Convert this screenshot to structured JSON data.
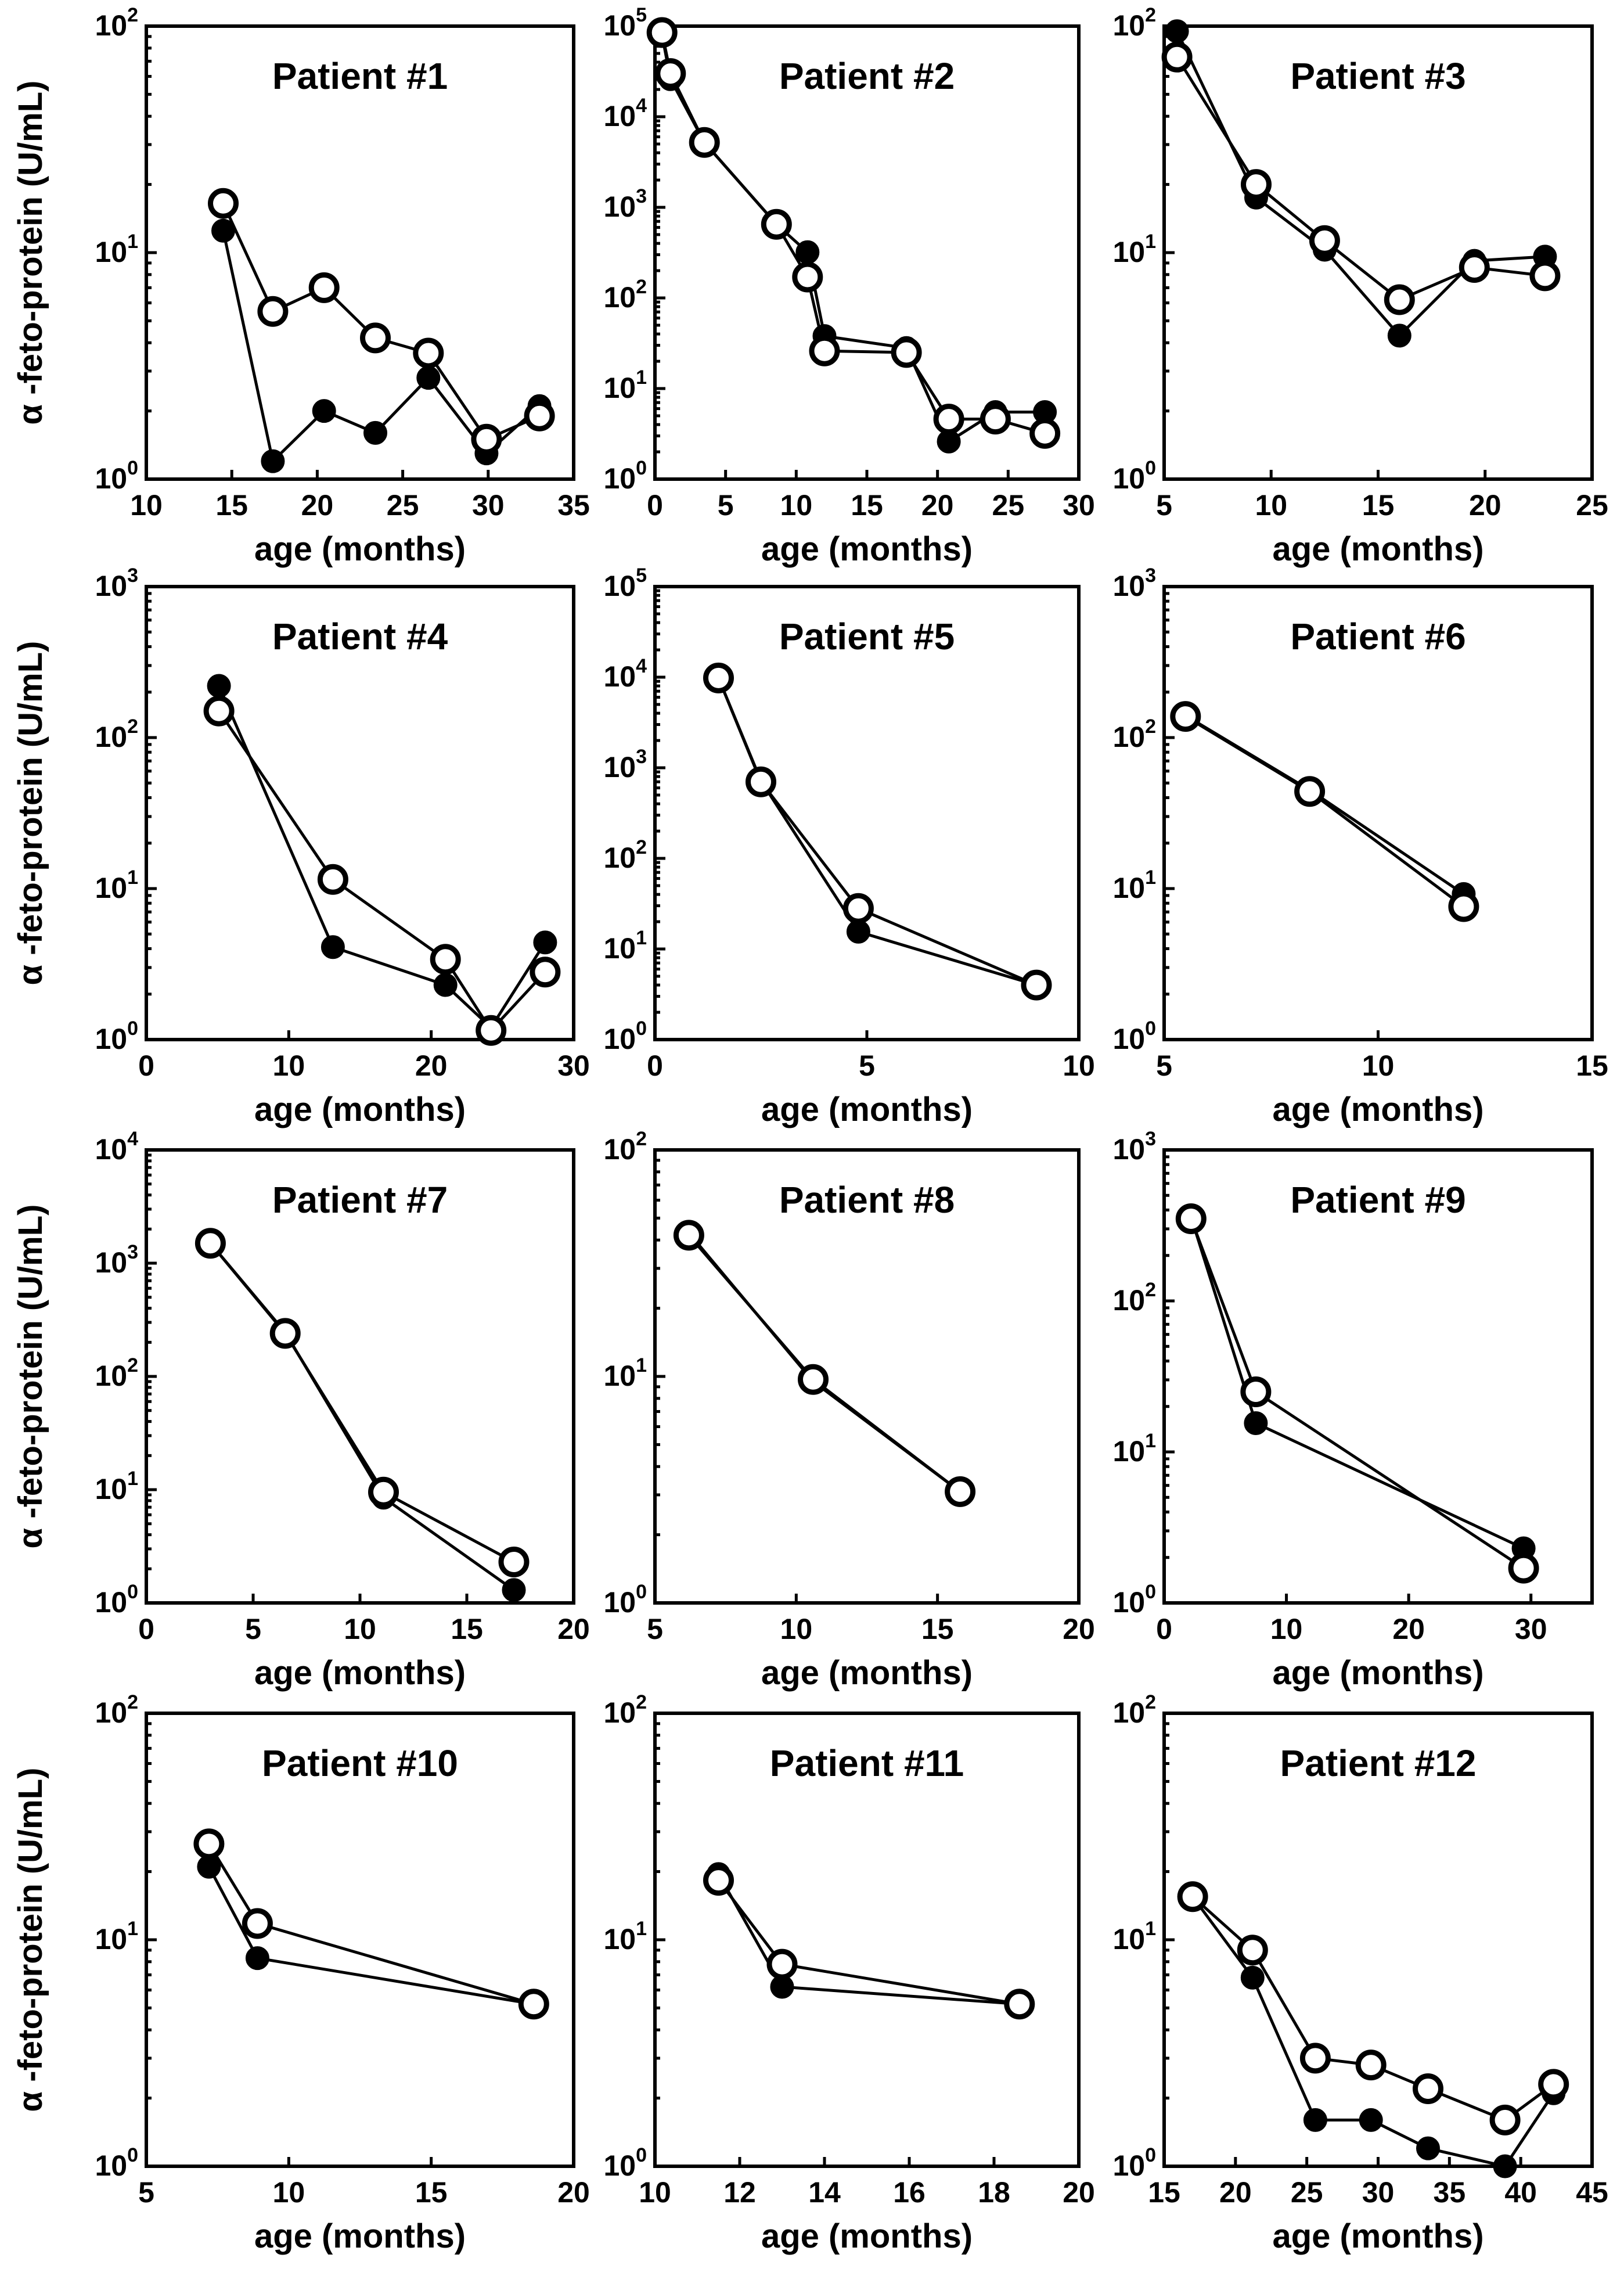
{
  "chart_data": [
    {
      "type": "scatter",
      "title": "Patient #1",
      "xlabel": "age (months)",
      "ylabel": "α -feto-protein (U/mL)",
      "xlim": [
        10,
        35
      ],
      "xticks": [
        10,
        15,
        20,
        25,
        30,
        35
      ],
      "ylog": true,
      "yexp": [
        0,
        2
      ],
      "ytick_labels": [
        {
          "base": "10",
          "exp": "0"
        },
        {
          "base": "10",
          "exp": "1"
        },
        {
          "base": "10",
          "exp": "2"
        }
      ],
      "series": [
        {
          "marker": "filled",
          "x": [
            14.5,
            17.4,
            20.4,
            23.4,
            26.5,
            29.9,
            33.0
          ],
          "y": [
            12.5,
            1.2,
            2.0,
            1.6,
            2.8,
            1.3,
            2.1
          ]
        },
        {
          "marker": "open",
          "x": [
            14.5,
            17.4,
            20.4,
            23.4,
            26.5,
            29.9,
            33.0
          ],
          "y": [
            16.5,
            5.5,
            7.0,
            4.2,
            3.6,
            1.5,
            1.9
          ]
        }
      ]
    },
    {
      "type": "scatter",
      "title": "Patient #2",
      "xlabel": "age (months)",
      "ylabel": "",
      "xlim": [
        0,
        30
      ],
      "xticks": [
        0,
        5,
        10,
        15,
        20,
        25,
        30
      ],
      "ylog": true,
      "yexp": [
        0,
        5
      ],
      "ytick_labels": [
        {
          "base": "10",
          "exp": "0"
        },
        {
          "base": "10",
          "exp": "1"
        },
        {
          "base": "10",
          "exp": "2"
        },
        {
          "base": "10",
          "exp": "3"
        },
        {
          "base": "10",
          "exp": "4"
        },
        {
          "base": "10",
          "exp": "5"
        }
      ],
      "series": [
        {
          "marker": "filled",
          "x": [
            0.5,
            1.1,
            3.5,
            8.6,
            10.8,
            12.0,
            17.8,
            20.8,
            24.1,
            27.6
          ],
          "y": [
            80000,
            26000,
            5200,
            650,
            320,
            38,
            28,
            2.6,
            5.5,
            5.5
          ]
        },
        {
          "marker": "open",
          "x": [
            0.5,
            1.1,
            3.5,
            8.6,
            10.8,
            12.0,
            17.8,
            20.8,
            24.1,
            27.6
          ],
          "y": [
            85000,
            30000,
            5200,
            650,
            170,
            26,
            25,
            4.6,
            4.6,
            3.2
          ]
        }
      ]
    },
    {
      "type": "scatter",
      "title": "Patient #3",
      "xlabel": "age (months)",
      "ylabel": "",
      "xlim": [
        5,
        25
      ],
      "xticks": [
        5,
        10,
        15,
        20,
        25
      ],
      "ylog": true,
      "yexp": [
        0,
        2
      ],
      "ytick_labels": [
        {
          "base": "10",
          "exp": "0"
        },
        {
          "base": "10",
          "exp": "1"
        },
        {
          "base": "10",
          "exp": "2"
        }
      ],
      "series": [
        {
          "marker": "filled",
          "x": [
            5.6,
            9.3,
            12.5,
            16.0,
            19.5,
            22.8
          ],
          "y": [
            95,
            17.5,
            10.3,
            4.3,
            9.2,
            9.6
          ]
        },
        {
          "marker": "open",
          "x": [
            5.6,
            9.3,
            12.5,
            16.0,
            19.5,
            22.8
          ],
          "y": [
            73,
            20,
            11.3,
            6.2,
            8.6,
            7.9
          ]
        }
      ]
    },
    {
      "type": "scatter",
      "title": "Patient #4",
      "xlabel": "age (months)",
      "ylabel": "α -feto-protein (U/mL)",
      "xlim": [
        0,
        30
      ],
      "xticks": [
        0,
        10,
        20,
        30
      ],
      "ylog": true,
      "yexp": [
        0,
        3
      ],
      "ytick_labels": [
        {
          "base": "10",
          "exp": "0"
        },
        {
          "base": "10",
          "exp": "1"
        },
        {
          "base": "10",
          "exp": "2"
        },
        {
          "base": "10",
          "exp": "3"
        }
      ],
      "series": [
        {
          "marker": "filled",
          "x": [
            5.1,
            13.1,
            21.0,
            24.2,
            28.0
          ],
          "y": [
            220,
            4.1,
            2.3,
            1.2,
            4.4
          ]
        },
        {
          "marker": "open",
          "x": [
            5.1,
            13.1,
            21.0,
            24.2,
            28.0
          ],
          "y": [
            150,
            11.5,
            3.4,
            1.15,
            2.8
          ]
        }
      ]
    },
    {
      "type": "scatter",
      "title": "Patient #5",
      "xlabel": "age (months)",
      "ylabel": "",
      "xlim": [
        0,
        10
      ],
      "xticks": [
        0,
        5,
        10
      ],
      "ylog": true,
      "yexp": [
        0,
        5
      ],
      "ytick_labels": [
        {
          "base": "10",
          "exp": "0"
        },
        {
          "base": "10",
          "exp": "1"
        },
        {
          "base": "10",
          "exp": "2"
        },
        {
          "base": "10",
          "exp": "3"
        },
        {
          "base": "10",
          "exp": "4"
        },
        {
          "base": "10",
          "exp": "5"
        }
      ],
      "series": [
        {
          "marker": "filled",
          "x": [
            1.5,
            2.5,
            4.8,
            9.0
          ],
          "y": [
            9800,
            720,
            15.5,
            4.0
          ]
        },
        {
          "marker": "open",
          "x": [
            1.5,
            2.5,
            4.8,
            9.0
          ],
          "y": [
            9800,
            700,
            28,
            4.0
          ]
        }
      ]
    },
    {
      "type": "scatter",
      "title": "Patient #6",
      "xlabel": "age (months)",
      "ylabel": "",
      "xlim": [
        5,
        15
      ],
      "xticks": [
        5,
        10,
        15
      ],
      "ylog": true,
      "yexp": [
        0,
        3
      ],
      "ytick_labels": [
        {
          "base": "10",
          "exp": "0"
        },
        {
          "base": "10",
          "exp": "1"
        },
        {
          "base": "10",
          "exp": "2"
        },
        {
          "base": "10",
          "exp": "3"
        }
      ],
      "series": [
        {
          "marker": "filled",
          "x": [
            5.5,
            8.4,
            12.0
          ],
          "y": [
            140,
            45,
            9.2
          ]
        },
        {
          "marker": "open",
          "x": [
            5.5,
            8.4,
            12.0
          ],
          "y": [
            138,
            44,
            7.6
          ]
        }
      ]
    },
    {
      "type": "scatter",
      "title": "Patient #7",
      "xlabel": "age (months)",
      "ylabel": "α -feto-protein (U/mL)",
      "xlim": [
        0,
        20
      ],
      "xticks": [
        0,
        5,
        10,
        15,
        20
      ],
      "ylog": true,
      "yexp": [
        0,
        4
      ],
      "ytick_labels": [
        {
          "base": "10",
          "exp": "0"
        },
        {
          "base": "10",
          "exp": "1"
        },
        {
          "base": "10",
          "exp": "2"
        },
        {
          "base": "10",
          "exp": "3"
        },
        {
          "base": "10",
          "exp": "4"
        }
      ],
      "series": [
        {
          "marker": "filled",
          "x": [
            3.0,
            6.5,
            11.1,
            17.2
          ],
          "y": [
            1500,
            245,
            8.5,
            1.3
          ]
        },
        {
          "marker": "open",
          "x": [
            3.0,
            6.5,
            11.1,
            17.2
          ],
          "y": [
            1500,
            240,
            9.5,
            2.3
          ]
        }
      ]
    },
    {
      "type": "scatter",
      "title": "Patient #8",
      "xlabel": "age (months)",
      "ylabel": "",
      "xlim": [
        5,
        20
      ],
      "xticks": [
        5,
        10,
        15,
        20
      ],
      "ylog": true,
      "yexp": [
        0,
        2
      ],
      "ytick_labels": [
        {
          "base": "10",
          "exp": "0"
        },
        {
          "base": "10",
          "exp": "1"
        },
        {
          "base": "10",
          "exp": "2"
        }
      ],
      "series": [
        {
          "marker": "filled",
          "x": [
            6.2,
            10.6,
            15.8
          ],
          "y": [
            43,
            9.5,
            3.1
          ]
        },
        {
          "marker": "open",
          "x": [
            6.2,
            10.6,
            15.8
          ],
          "y": [
            42,
            9.7,
            3.1
          ]
        }
      ]
    },
    {
      "type": "scatter",
      "title": "Patient #9",
      "xlabel": "age (months)",
      "ylabel": "",
      "xlim": [
        0,
        35
      ],
      "xticks": [
        0,
        10,
        20,
        30
      ],
      "ylog": true,
      "yexp": [
        0,
        3
      ],
      "ytick_labels": [
        {
          "base": "10",
          "exp": "0"
        },
        {
          "base": "10",
          "exp": "1"
        },
        {
          "base": "10",
          "exp": "2"
        },
        {
          "base": "10",
          "exp": "3"
        }
      ],
      "series": [
        {
          "marker": "filled",
          "x": [
            2.2,
            7.5,
            29.4
          ],
          "y": [
            360,
            15.5,
            2.3
          ]
        },
        {
          "marker": "open",
          "x": [
            2.2,
            7.5,
            29.4
          ],
          "y": [
            350,
            25,
            1.7
          ]
        }
      ]
    },
    {
      "type": "scatter",
      "title": "Patient #10",
      "xlabel": "age (months)",
      "ylabel": "α -feto-protein (U/mL)",
      "xlim": [
        5,
        20
      ],
      "xticks": [
        5,
        10,
        15,
        20
      ],
      "ylog": true,
      "yexp": [
        0,
        2
      ],
      "ytick_labels": [
        {
          "base": "10",
          "exp": "0"
        },
        {
          "base": "10",
          "exp": "1"
        },
        {
          "base": "10",
          "exp": "2"
        }
      ],
      "series": [
        {
          "marker": "filled",
          "x": [
            7.2,
            8.9,
            18.6
          ],
          "y": [
            21,
            8.3,
            5.2
          ]
        },
        {
          "marker": "open",
          "x": [
            7.2,
            8.9,
            18.6
          ],
          "y": [
            26.5,
            11.8,
            5.2
          ]
        }
      ]
    },
    {
      "type": "scatter",
      "title": "Patient #11",
      "xlabel": "age (months)",
      "ylabel": "",
      "xlim": [
        10,
        20
      ],
      "xticks": [
        10,
        12,
        14,
        16,
        18,
        20
      ],
      "ylog": true,
      "yexp": [
        0,
        2
      ],
      "ytick_labels": [
        {
          "base": "10",
          "exp": "0"
        },
        {
          "base": "10",
          "exp": "1"
        },
        {
          "base": "10",
          "exp": "2"
        }
      ],
      "series": [
        {
          "marker": "filled",
          "x": [
            11.5,
            13.0,
            18.6
          ],
          "y": [
            19.5,
            6.2,
            5.2
          ]
        },
        {
          "marker": "open",
          "x": [
            11.5,
            13.0,
            18.6
          ],
          "y": [
            18.3,
            7.8,
            5.2
          ]
        }
      ]
    },
    {
      "type": "scatter",
      "title": "Patient #12",
      "xlabel": "age (months)",
      "ylabel": "",
      "xlim": [
        15,
        45
      ],
      "xticks": [
        15,
        20,
        25,
        30,
        35,
        40,
        45
      ],
      "ylog": true,
      "yexp": [
        0,
        2
      ],
      "ytick_labels": [
        {
          "base": "10",
          "exp": "0"
        },
        {
          "base": "10",
          "exp": "1"
        },
        {
          "base": "10",
          "exp": "2"
        }
      ],
      "series": [
        {
          "marker": "filled",
          "x": [
            17.0,
            21.2,
            25.6,
            29.5,
            33.5,
            38.9,
            42.3
          ],
          "y": [
            15.5,
            6.8,
            1.6,
            1.6,
            1.2,
            1.0,
            2.1
          ]
        },
        {
          "marker": "open",
          "x": [
            17.0,
            21.2,
            25.6,
            29.5,
            33.5,
            38.9,
            42.3
          ],
          "y": [
            15.5,
            9.0,
            3.0,
            2.8,
            2.2,
            1.6,
            2.3
          ]
        }
      ]
    }
  ]
}
